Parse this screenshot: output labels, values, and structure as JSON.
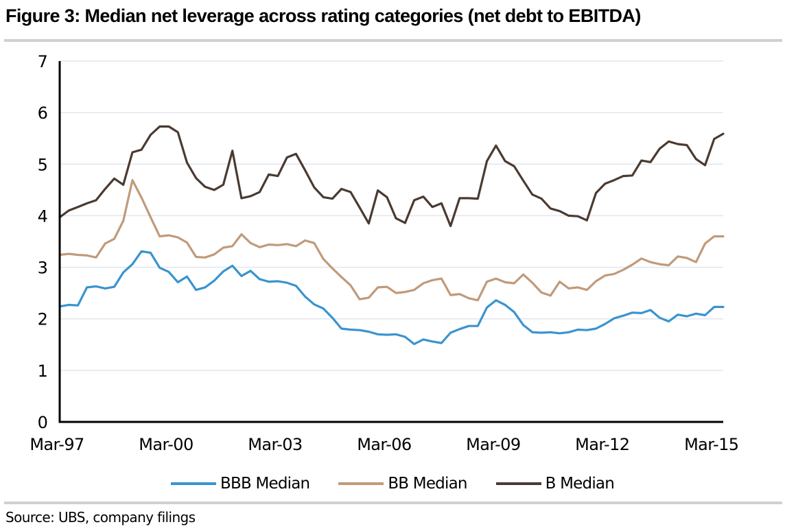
{
  "chart_data": {
    "type": "line",
    "title": "Figure 3: Median net leverage across rating categories (net debt to EBITDA)",
    "xlabel": "",
    "ylabel": "",
    "ylim": [
      0,
      7
    ],
    "y_ticks": [
      "0",
      "1",
      "2",
      "3",
      "4",
      "5",
      "6",
      "7"
    ],
    "x_tick_labels": [
      "Mar-97",
      "Mar-00",
      "Mar-03",
      "Mar-06",
      "Mar-09",
      "Mar-12",
      "Mar-15"
    ],
    "x_tick_indices": [
      0,
      12,
      24,
      36,
      48,
      60,
      72
    ],
    "x_start": "Mar-97",
    "x_end": "Jun-15",
    "frequency": "quarterly",
    "grid": true,
    "legend_position": "bottom",
    "series": [
      {
        "name": "BBB Median",
        "color": "#3a93cf",
        "values": [
          2.24,
          2.27,
          2.26,
          2.61,
          2.63,
          2.59,
          2.62,
          2.9,
          3.06,
          3.31,
          3.28,
          2.99,
          2.91,
          2.71,
          2.82,
          2.56,
          2.61,
          2.74,
          2.92,
          3.03,
          2.83,
          2.93,
          2.77,
          2.72,
          2.73,
          2.7,
          2.64,
          2.43,
          2.28,
          2.2,
          2.02,
          1.81,
          1.79,
          1.78,
          1.75,
          1.7,
          1.69,
          1.7,
          1.65,
          1.51,
          1.6,
          1.56,
          1.53,
          1.73,
          1.8,
          1.86,
          1.86,
          2.22,
          2.36,
          2.27,
          2.13,
          1.88,
          1.74,
          1.73,
          1.74,
          1.72,
          1.74,
          1.79,
          1.78,
          1.81,
          1.9,
          2.01,
          2.06,
          2.12,
          2.11,
          2.17,
          2.02,
          1.95,
          2.08,
          2.05,
          2.1,
          2.07,
          2.23,
          2.23
        ]
      },
      {
        "name": "BB Median",
        "color": "#c09a7a",
        "values": [
          3.24,
          3.26,
          3.24,
          3.23,
          3.19,
          3.46,
          3.55,
          3.9,
          4.69,
          4.35,
          3.97,
          3.6,
          3.62,
          3.58,
          3.48,
          3.2,
          3.19,
          3.25,
          3.38,
          3.41,
          3.64,
          3.47,
          3.39,
          3.44,
          3.43,
          3.45,
          3.41,
          3.52,
          3.47,
          3.16,
          2.98,
          2.81,
          2.65,
          2.38,
          2.41,
          2.61,
          2.62,
          2.5,
          2.52,
          2.56,
          2.69,
          2.75,
          2.78,
          2.46,
          2.48,
          2.4,
          2.36,
          2.72,
          2.78,
          2.71,
          2.69,
          2.86,
          2.7,
          2.51,
          2.45,
          2.72,
          2.59,
          2.61,
          2.56,
          2.73,
          2.84,
          2.87,
          2.95,
          3.05,
          3.17,
          3.1,
          3.06,
          3.04,
          3.21,
          3.18,
          3.1,
          3.46,
          3.6,
          3.6
        ]
      },
      {
        "name": "B Median",
        "color": "#4a3a30",
        "values": [
          3.97,
          4.1,
          4.17,
          4.24,
          4.3,
          4.52,
          4.72,
          4.6,
          5.23,
          5.28,
          5.57,
          5.73,
          5.73,
          5.62,
          5.03,
          4.73,
          4.56,
          4.5,
          4.6,
          5.26,
          4.34,
          4.38,
          4.46,
          4.8,
          4.77,
          5.13,
          5.2,
          4.88,
          4.55,
          4.36,
          4.33,
          4.52,
          4.46,
          4.16,
          3.85,
          4.49,
          4.36,
          3.95,
          3.86,
          4.3,
          4.37,
          4.17,
          4.24,
          3.8,
          4.34,
          4.34,
          4.33,
          5.06,
          5.36,
          5.06,
          4.96,
          4.68,
          4.41,
          4.33,
          4.14,
          4.09,
          4.0,
          3.99,
          3.91,
          4.44,
          4.62,
          4.69,
          4.77,
          4.78,
          5.07,
          5.04,
          5.3,
          5.44,
          5.39,
          5.37,
          5.1,
          4.98,
          5.49,
          5.59
        ]
      }
    ]
  },
  "header": {
    "title": "Figure 3: Median net leverage across rating categories (net debt to EBITDA)"
  },
  "legend": {
    "items": [
      {
        "label": "BBB Median",
        "color": "#3a93cf"
      },
      {
        "label": "BB Median",
        "color": "#c09a7a"
      },
      {
        "label": "B Median",
        "color": "#4a3a30"
      }
    ]
  },
  "footer": {
    "source": "Source:  UBS, company filings"
  }
}
